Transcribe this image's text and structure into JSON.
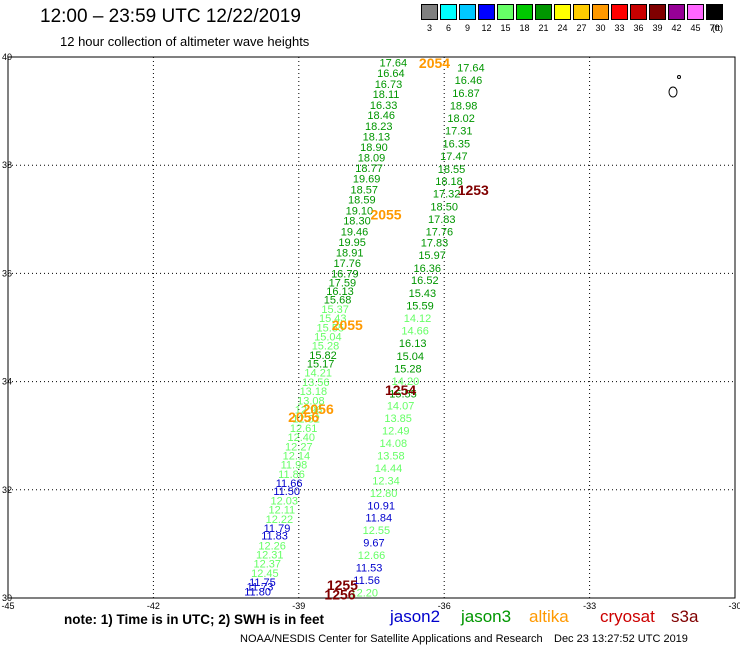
{
  "title": "12:00 – 23:59 UTC 12/22/2019",
  "subtitle": "12 hour collection of altimeter wave heights",
  "colorbar": {
    "unit": "(ft)",
    "bins": [
      {
        "label": "3",
        "color": "#808080"
      },
      {
        "label": "6",
        "color": "#00ffff"
      },
      {
        "label": "9",
        "color": "#00c8ff"
      },
      {
        "label": "12",
        "color": "#0000ff"
      },
      {
        "label": "15",
        "color": "#66ff66"
      },
      {
        "label": "18",
        "color": "#00c800"
      },
      {
        "label": "21",
        "color": "#009600"
      },
      {
        "label": "24",
        "color": "#ffff00"
      },
      {
        "label": "27",
        "color": "#ffcc00"
      },
      {
        "label": "30",
        "color": "#ff9900"
      },
      {
        "label": "33",
        "color": "#ff0000"
      },
      {
        "label": "36",
        "color": "#c80000"
      },
      {
        "label": "39",
        "color": "#800000"
      },
      {
        "label": "42",
        "color": "#960096"
      },
      {
        "label": "45",
        "color": "#ff66ff"
      },
      {
        "label": "70",
        "color": "#000000"
      }
    ]
  },
  "map": {
    "lon_ticks": [
      "-45",
      "-42",
      "-39",
      "-36",
      "-33",
      "-30"
    ],
    "lat_ticks": [
      "30",
      "32",
      "34",
      "36",
      "38",
      "40"
    ]
  },
  "labels": [
    {
      "t": "17.64",
      "lon": -37.05,
      "lat": 39.82,
      "c": "#009600"
    },
    {
      "t": "16.64",
      "lon": -37.1,
      "lat": 39.63,
      "c": "#009600"
    },
    {
      "t": "16.73",
      "lon": -37.15,
      "lat": 39.43,
      "c": "#009600"
    },
    {
      "t": "18.11",
      "lon": -37.2,
      "lat": 39.24,
      "c": "#009600"
    },
    {
      "t": "16.33",
      "lon": -37.25,
      "lat": 39.04,
      "c": "#009600"
    },
    {
      "t": "18.46",
      "lon": -37.3,
      "lat": 38.85,
      "c": "#009600"
    },
    {
      "t": "18.23",
      "lon": -37.35,
      "lat": 38.65,
      "c": "#009600"
    },
    {
      "t": "18.13",
      "lon": -37.4,
      "lat": 38.46,
      "c": "#009600"
    },
    {
      "t": "18.90",
      "lon": -37.45,
      "lat": 38.26,
      "c": "#009600"
    },
    {
      "t": "18.09",
      "lon": -37.5,
      "lat": 38.07,
      "c": "#009600"
    },
    {
      "t": "18.77",
      "lon": -37.55,
      "lat": 37.87,
      "c": "#009600"
    },
    {
      "t": "19.69",
      "lon": -37.6,
      "lat": 37.68,
      "c": "#009600"
    },
    {
      "t": "18.57",
      "lon": -37.65,
      "lat": 37.48,
      "c": "#009600"
    },
    {
      "t": "18.59",
      "lon": -37.7,
      "lat": 37.29,
      "c": "#009600"
    },
    {
      "t": "19.10",
      "lon": -37.75,
      "lat": 37.09,
      "c": "#009600"
    },
    {
      "t": "18.30",
      "lon": -37.8,
      "lat": 36.9,
      "c": "#009600"
    },
    {
      "t": "19.46",
      "lon": -37.85,
      "lat": 36.7,
      "c": "#009600"
    },
    {
      "t": "19.95",
      "lon": -37.9,
      "lat": 36.51,
      "c": "#009600"
    },
    {
      "t": "18.91",
      "lon": -37.95,
      "lat": 36.31,
      "c": "#009600"
    },
    {
      "t": "17.76",
      "lon": -38.0,
      "lat": 36.12,
      "c": "#009600"
    },
    {
      "t": "16.79",
      "lon": -38.05,
      "lat": 35.92,
      "c": "#009600"
    },
    {
      "t": "17.59",
      "lon": -38.1,
      "lat": 35.76,
      "c": "#009600"
    },
    {
      "t": "16.13",
      "lon": -38.15,
      "lat": 35.6,
      "c": "#009600"
    },
    {
      "t": "15.68",
      "lon": -38.2,
      "lat": 35.44,
      "c": "#009600"
    },
    {
      "t": "15.37",
      "lon": -38.25,
      "lat": 35.27,
      "c": "#66ff66"
    },
    {
      "t": "15.43",
      "lon": -38.3,
      "lat": 35.1,
      "c": "#66ff66"
    },
    {
      "t": "15.55",
      "lon": -38.35,
      "lat": 34.93,
      "c": "#66ff66"
    },
    {
      "t": "15.04",
      "lon": -38.4,
      "lat": 34.76,
      "c": "#66ff66"
    },
    {
      "t": "15.28",
      "lon": -38.45,
      "lat": 34.59,
      "c": "#66ff66"
    },
    {
      "t": "15.82",
      "lon": -38.5,
      "lat": 34.42,
      "c": "#009600"
    },
    {
      "t": "15.17",
      "lon": -38.55,
      "lat": 34.26,
      "c": "#009600"
    },
    {
      "t": "14.21",
      "lon": -38.6,
      "lat": 34.09,
      "c": "#66ff66"
    },
    {
      "t": "13.56",
      "lon": -38.65,
      "lat": 33.92,
      "c": "#66ff66"
    },
    {
      "t": "13.18",
      "lon": -38.7,
      "lat": 33.75,
      "c": "#66ff66"
    },
    {
      "t": "13.08",
      "lon": -38.75,
      "lat": 33.58,
      "c": "#66ff66"
    },
    {
      "t": "12.96",
      "lon": -38.8,
      "lat": 33.41,
      "c": "#66ff66"
    },
    {
      "t": "12.82",
      "lon": -38.85,
      "lat": 33.24,
      "c": "#66ff66"
    },
    {
      "t": "12.61",
      "lon": -38.9,
      "lat": 33.07,
      "c": "#66ff66"
    },
    {
      "t": "12.40",
      "lon": -38.95,
      "lat": 32.9,
      "c": "#66ff66"
    },
    {
      "t": "12.27",
      "lon": -39.0,
      "lat": 32.73,
      "c": "#66ff66"
    },
    {
      "t": "12.14",
      "lon": -39.05,
      "lat": 32.56,
      "c": "#66ff66"
    },
    {
      "t": "11.98",
      "lon": -39.1,
      "lat": 32.39,
      "c": "#66ff66"
    },
    {
      "t": "11.86",
      "lon": -39.15,
      "lat": 32.22,
      "c": "#66ff66"
    },
    {
      "t": "11.66",
      "lon": -39.2,
      "lat": 32.05,
      "c": "#0000cc"
    },
    {
      "t": "11.50",
      "lon": -39.25,
      "lat": 31.9,
      "c": "#0000cc"
    },
    {
      "t": "12.03",
      "lon": -39.3,
      "lat": 31.73,
      "c": "#66ff66"
    },
    {
      "t": "12.11",
      "lon": -39.35,
      "lat": 31.56,
      "c": "#66ff66"
    },
    {
      "t": "12.22",
      "lon": -39.4,
      "lat": 31.39,
      "c": "#66ff66"
    },
    {
      "t": "11.79",
      "lon": -39.45,
      "lat": 31.22,
      "c": "#0000cc"
    },
    {
      "t": "11.83",
      "lon": -39.5,
      "lat": 31.08,
      "c": "#0000cc"
    },
    {
      "t": "12.26",
      "lon": -39.55,
      "lat": 30.9,
      "c": "#66ff66"
    },
    {
      "t": "12.31",
      "lon": -39.6,
      "lat": 30.73,
      "c": "#66ff66"
    },
    {
      "t": "12.37",
      "lon": -39.65,
      "lat": 30.56,
      "c": "#66ff66"
    },
    {
      "t": "12.45",
      "lon": -39.7,
      "lat": 30.39,
      "c": "#66ff66"
    },
    {
      "t": "11.75",
      "lon": -39.75,
      "lat": 30.22,
      "c": "#0000cc"
    },
    {
      "t": "11.73",
      "lon": -39.8,
      "lat": 30.14,
      "c": "#0000cc"
    },
    {
      "t": "11.80",
      "lon": -39.85,
      "lat": 30.05,
      "c": "#0000cc"
    },
    {
      "t": "17.64",
      "lon": -35.45,
      "lat": 39.73,
      "c": "#009600"
    },
    {
      "t": "16.46",
      "lon": -35.5,
      "lat": 39.5,
      "c": "#009600"
    },
    {
      "t": "16.87",
      "lon": -35.55,
      "lat": 39.26,
      "c": "#009600"
    },
    {
      "t": "18.98",
      "lon": -35.6,
      "lat": 39.03,
      "c": "#009600"
    },
    {
      "t": "18.02",
      "lon": -35.65,
      "lat": 38.8,
      "c": "#009600"
    },
    {
      "t": "17.31",
      "lon": -35.7,
      "lat": 38.57,
      "c": "#009600"
    },
    {
      "t": "16.35",
      "lon": -35.75,
      "lat": 38.33,
      "c": "#009600"
    },
    {
      "t": "17.47",
      "lon": -35.8,
      "lat": 38.1,
      "c": "#009600"
    },
    {
      "t": "18.55",
      "lon": -35.85,
      "lat": 37.86,
      "c": "#009600"
    },
    {
      "t": "18.18",
      "lon": -35.9,
      "lat": 37.63,
      "c": "#009600"
    },
    {
      "t": "17.32",
      "lon": -35.95,
      "lat": 37.4,
      "c": "#009600"
    },
    {
      "t": "18.50",
      "lon": -36.0,
      "lat": 37.16,
      "c": "#009600"
    },
    {
      "t": "17.83",
      "lon": -36.05,
      "lat": 36.93,
      "c": "#009600"
    },
    {
      "t": "17.76",
      "lon": -36.1,
      "lat": 36.7,
      "c": "#009600"
    },
    {
      "t": "17.83",
      "lon": -36.2,
      "lat": 36.5,
      "c": "#009600"
    },
    {
      "t": "15.97",
      "lon": -36.25,
      "lat": 36.27,
      "c": "#009600"
    },
    {
      "t": "16.36",
      "lon": -36.35,
      "lat": 36.03,
      "c": "#009600"
    },
    {
      "t": "16.52",
      "lon": -36.4,
      "lat": 35.8,
      "c": "#009600"
    },
    {
      "t": "15.43",
      "lon": -36.45,
      "lat": 35.56,
      "c": "#009600"
    },
    {
      "t": "15.59",
      "lon": -36.5,
      "lat": 35.33,
      "c": "#009600"
    },
    {
      "t": "14.12",
      "lon": -36.55,
      "lat": 35.1,
      "c": "#66ff66"
    },
    {
      "t": "14.66",
      "lon": -36.6,
      "lat": 34.87,
      "c": "#66ff66"
    },
    {
      "t": "16.13",
      "lon": -36.65,
      "lat": 34.64,
      "c": "#009600"
    },
    {
      "t": "15.04",
      "lon": -36.7,
      "lat": 34.4,
      "c": "#009600"
    },
    {
      "t": "15.28",
      "lon": -36.75,
      "lat": 34.17,
      "c": "#009600"
    },
    {
      "t": "14.20",
      "lon": -36.8,
      "lat": 33.94,
      "c": "#66ff66"
    },
    {
      "t": "15.55",
      "lon": -36.85,
      "lat": 33.71,
      "c": "#009600"
    },
    {
      "t": "14.07",
      "lon": -36.9,
      "lat": 33.48,
      "c": "#66ff66"
    },
    {
      "t": "13.85",
      "lon": -36.95,
      "lat": 33.25,
      "c": "#66ff66"
    },
    {
      "t": "12.49",
      "lon": -37.0,
      "lat": 33.02,
      "c": "#66ff66"
    },
    {
      "t": "14.08",
      "lon": -37.05,
      "lat": 32.79,
      "c": "#66ff66"
    },
    {
      "t": "13.58",
      "lon": -37.1,
      "lat": 32.56,
      "c": "#66ff66"
    },
    {
      "t": "14.44",
      "lon": -37.15,
      "lat": 32.33,
      "c": "#66ff66"
    },
    {
      "t": "12.34",
      "lon": -37.2,
      "lat": 32.1,
      "c": "#66ff66"
    },
    {
      "t": "12.80",
      "lon": -37.25,
      "lat": 31.87,
      "c": "#66ff66"
    },
    {
      "t": "10.91",
      "lon": -37.3,
      "lat": 31.64,
      "c": "#0000cc"
    },
    {
      "t": "11.84",
      "lon": -37.35,
      "lat": 31.41,
      "c": "#0000cc"
    },
    {
      "t": "12.55",
      "lon": -37.4,
      "lat": 31.18,
      "c": "#66ff66"
    },
    {
      "t": "9.67",
      "lon": -37.45,
      "lat": 30.95,
      "c": "#0000cc"
    },
    {
      "t": "12.66",
      "lon": -37.5,
      "lat": 30.72,
      "c": "#66ff66"
    },
    {
      "t": "11.53",
      "lon": -37.55,
      "lat": 30.49,
      "c": "#0000cc"
    },
    {
      "t": "11.56",
      "lon": -37.6,
      "lat": 30.26,
      "c": "#0000cc"
    },
    {
      "t": "12.20",
      "lon": -37.65,
      "lat": 30.03,
      "c": "#66ff66"
    },
    {
      "t": "2054",
      "lon": -36.2,
      "lat": 39.8,
      "c": "#ff9900",
      "big": true
    },
    {
      "t": "2055",
      "lon": -37.2,
      "lat": 37.0,
      "c": "#ff9900",
      "big": true
    },
    {
      "t": "2055",
      "lon": -38.0,
      "lat": 34.95,
      "c": "#ff9900",
      "big": true
    },
    {
      "t": "2056",
      "lon": -38.6,
      "lat": 33.4,
      "c": "#ff9900",
      "big": true
    },
    {
      "t": "2056",
      "lon": -38.9,
      "lat": 33.25,
      "c": "#ff9900",
      "big": true
    },
    {
      "t": "1253",
      "lon": -35.4,
      "lat": 37.45,
      "c": "#800000",
      "big": true
    },
    {
      "t": "1254",
      "lon": -36.9,
      "lat": 33.75,
      "c": "#800000",
      "big": true
    },
    {
      "t": "1255",
      "lon": -38.1,
      "lat": 30.15,
      "c": "#800000",
      "big": true
    },
    {
      "t": "1256",
      "lon": -38.15,
      "lat": 29.97,
      "c": "#800000",
      "big": true
    }
  ],
  "footer": {
    "note": "note:  1) Time is in UTC;  2) SWH is in feet",
    "satellites": [
      {
        "name": "jason2",
        "color": "#0000cc"
      },
      {
        "name": "jason3",
        "color": "#009600"
      },
      {
        "name": "altika",
        "color": "#ff9900"
      },
      {
        "name": "cryosat",
        "color": "#cc0000"
      },
      {
        "name": "s3a",
        "color": "#800000"
      }
    ],
    "credit": "NOAA/NESDIS Center for Satellite Applications and Research",
    "timestamp": "Dec 23 13:27:52 UTC 2019"
  }
}
